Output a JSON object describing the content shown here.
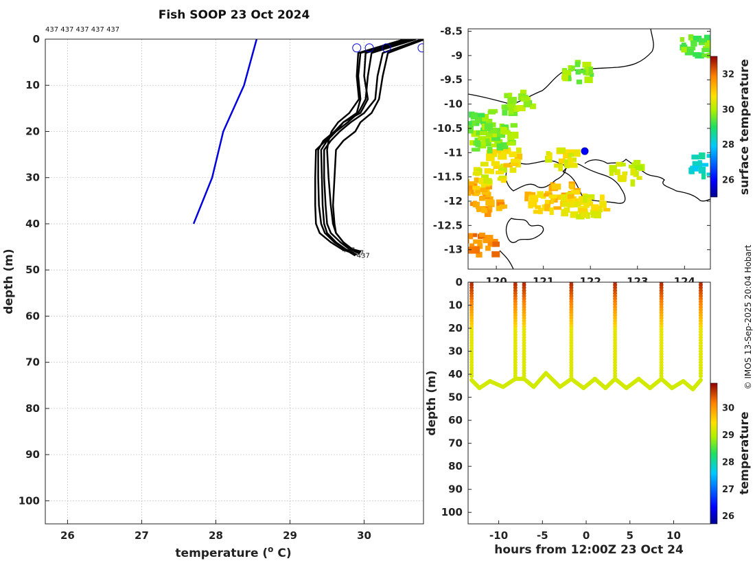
{
  "chart_data": [
    {
      "type": "line",
      "id": "profiles",
      "title": "Fish SOOP 23 Oct 2024",
      "xlabel": "temperature (",
      "xlabel_sup": "o",
      "xlabel_end": " C)",
      "ylabel": "depth (m)",
      "xlim": [
        25.7,
        30.8
      ],
      "ylim": [
        105,
        0
      ],
      "xticks": [
        26,
        27,
        28,
        29,
        30
      ],
      "yticks": [
        0,
        10,
        20,
        30,
        40,
        50,
        60,
        70,
        80,
        90,
        100
      ],
      "grid": true,
      "profile_ids_label": "437 437 437 437 437",
      "end_label": "437",
      "climatology": {
        "name": "climatology",
        "color": "#0000dd",
        "x": [
          28.55,
          28.38,
          28.1,
          27.95,
          27.7
        ],
        "y": [
          0,
          10,
          20,
          30,
          40
        ]
      },
      "surface_markers": {
        "x": [
          29.9,
          30.07,
          30.3,
          30.85
        ],
        "y": [
          1,
          1,
          1,
          1
        ]
      },
      "profiles": [
        {
          "x": [
            30.6,
            29.95,
            29.92,
            29.95,
            29.9,
            29.72,
            29.62,
            29.48,
            29.35,
            29.34,
            29.34,
            29.35,
            29.4,
            29.55,
            29.7,
            29.87
          ],
          "y": [
            0,
            3,
            8,
            13,
            16,
            18,
            20,
            22,
            24,
            30,
            36,
            40,
            42,
            44,
            45.5,
            46.5
          ]
        },
        {
          "x": [
            30.7,
            30.1,
            30.05,
            30.02,
            29.92,
            29.78,
            29.62,
            29.5,
            29.42,
            29.43,
            29.44,
            29.46,
            29.5,
            29.62,
            29.75,
            29.9
          ],
          "y": [
            0,
            3,
            8,
            13,
            16,
            18,
            20,
            22,
            24,
            30,
            36,
            40,
            42,
            44,
            45.5,
            46.7
          ]
        },
        {
          "x": [
            30.78,
            30.25,
            30.18,
            30.15,
            30.0,
            29.82,
            29.67,
            29.55,
            29.46,
            29.46,
            29.48,
            29.5,
            29.55,
            29.68,
            29.8,
            29.93
          ],
          "y": [
            0,
            3,
            8,
            13,
            16,
            18,
            20,
            22,
            24,
            30,
            36,
            40,
            42,
            44,
            45.5,
            46.4
          ]
        },
        {
          "x": [
            30.55,
            29.92,
            29.9,
            29.93,
            29.8,
            29.65,
            29.56,
            29.52,
            29.5,
            29.52,
            29.55,
            29.58,
            29.62,
            29.72,
            29.82,
            29.95
          ],
          "y": [
            0,
            3,
            8,
            13,
            16,
            18,
            20,
            22,
            24,
            30,
            36,
            40,
            42,
            44,
            45.5,
            46.2
          ]
        },
        {
          "x": [
            30.65,
            30.02,
            30.0,
            30.05,
            29.95,
            29.72,
            29.6,
            29.45,
            29.38,
            29.38,
            29.39,
            29.42,
            29.47,
            29.6,
            29.74,
            29.88
          ],
          "y": [
            0,
            3,
            8,
            13,
            16,
            18,
            20,
            22,
            24,
            30,
            36,
            40,
            42,
            44,
            45.5,
            46.9
          ]
        },
        {
          "x": [
            30.82,
            30.32,
            30.25,
            30.2,
            30.1,
            29.95,
            29.88,
            29.72,
            29.62,
            29.6,
            29.58,
            29.6,
            29.62,
            29.72,
            29.84,
            29.96
          ],
          "y": [
            0,
            3,
            8,
            13,
            16,
            18,
            20,
            22,
            24,
            30,
            36,
            40,
            42,
            44,
            45.5,
            46.0
          ]
        }
      ]
    },
    {
      "type": "heatmap",
      "id": "map",
      "xlim": [
        119.4,
        124.55
      ],
      "ylim": [
        -13.4,
        -8.45
      ],
      "xticks": [
        120,
        121,
        122,
        123,
        124
      ],
      "yticks": [
        -8.5,
        -9,
        -9.5,
        -10,
        -10.5,
        -11,
        -11.5,
        -12,
        -12.5,
        -13
      ],
      "ytick_labels": [
        "-8.5",
        "-9",
        "-9.5",
        "-10",
        "-10.5",
        "-11",
        "-11.5",
        "-12",
        "-12.5",
        "-13"
      ],
      "colorbar_label": "surface temperature",
      "colorbar_ticks": [
        26,
        28,
        30,
        32
      ],
      "colorbar_range": [
        25,
        33
      ],
      "vessel_position": {
        "lon": 121.88,
        "lat": -10.97
      },
      "sst_patches": [
        {
          "lon": 119.6,
          "lat": -12.85,
          "temp": 31.8
        },
        {
          "lon": 119.75,
          "lat": -12.0,
          "temp": 31.5
        },
        {
          "lon": 119.5,
          "lat": -11.7,
          "temp": 31.3
        },
        {
          "lon": 119.8,
          "lat": -11.4,
          "temp": 30.5
        },
        {
          "lon": 120.1,
          "lat": -11.1,
          "temp": 30.8
        },
        {
          "lon": 119.7,
          "lat": -10.7,
          "temp": 29.8
        },
        {
          "lon": 119.55,
          "lat": -10.3,
          "temp": 29.5
        },
        {
          "lon": 120.0,
          "lat": -10.6,
          "temp": 29.7
        },
        {
          "lon": 121.3,
          "lat": -11.1,
          "temp": 30.6
        },
        {
          "lon": 121.35,
          "lat": -11.8,
          "temp": 31.2
        },
        {
          "lon": 120.9,
          "lat": -12.0,
          "temp": 31.0
        },
        {
          "lon": 121.6,
          "lat": -12.0,
          "temp": 30.8
        },
        {
          "lon": 122.0,
          "lat": -12.05,
          "temp": 30.6
        },
        {
          "lon": 122.7,
          "lat": -11.35,
          "temp": 30.2
        },
        {
          "lon": 124.2,
          "lat": -8.75,
          "temp": 29.5
        },
        {
          "lon": 121.7,
          "lat": -9.3,
          "temp": 29.7
        },
        {
          "lon": 120.4,
          "lat": -9.9,
          "temp": 29.8
        },
        {
          "lon": 124.4,
          "lat": -11.2,
          "temp": 28.2
        }
      ]
    },
    {
      "type": "scatter",
      "id": "section",
      "xlabel": "hours from 12:00Z 23 Oct 24",
      "ylabel": "depth (m)",
      "xlim": [
        -13.5,
        14.2
      ],
      "ylim": [
        105,
        0
      ],
      "xticks": [
        -10,
        -5,
        0,
        5,
        10
      ],
      "yticks": [
        0,
        10,
        20,
        30,
        40,
        50,
        60,
        70,
        80,
        90,
        100
      ],
      "colorbar_label": "temperature",
      "colorbar_ticks": [
        26,
        27,
        28,
        29,
        30
      ],
      "colorbar_range": [
        25.7,
        30.9
      ],
      "casts": [
        -13.1,
        -8.1,
        -7.1,
        -1.7,
        3.3,
        8.6,
        13.1
      ],
      "bottom_track": [
        {
          "t": -13.1,
          "d": 42.5
        },
        {
          "t": -12.2,
          "d": 46
        },
        {
          "t": -11.0,
          "d": 43
        },
        {
          "t": -9.5,
          "d": 45.5
        },
        {
          "t": -8.1,
          "d": 42
        },
        {
          "t": -7.1,
          "d": 42
        },
        {
          "t": -6.0,
          "d": 45.5
        },
        {
          "t": -4.6,
          "d": 39.5
        },
        {
          "t": -3.0,
          "d": 45.5
        },
        {
          "t": -1.7,
          "d": 42
        },
        {
          "t": -0.3,
          "d": 46
        },
        {
          "t": 1.0,
          "d": 42
        },
        {
          "t": 2.2,
          "d": 46
        },
        {
          "t": 3.3,
          "d": 42
        },
        {
          "t": 4.6,
          "d": 46
        },
        {
          "t": 6.0,
          "d": 42
        },
        {
          "t": 7.3,
          "d": 46
        },
        {
          "t": 8.6,
          "d": 42
        },
        {
          "t": 9.8,
          "d": 46
        },
        {
          "t": 11.1,
          "d": 43
        },
        {
          "t": 12.2,
          "d": 46.5
        },
        {
          "t": 13.1,
          "d": 42.5
        }
      ]
    }
  ],
  "watermark": "© IMOS 13-Sep-2025 20:04 Hobart",
  "colors": {
    "profile": "#000000",
    "climatology": "#0000dd",
    "grid": "#c8c8c8"
  }
}
